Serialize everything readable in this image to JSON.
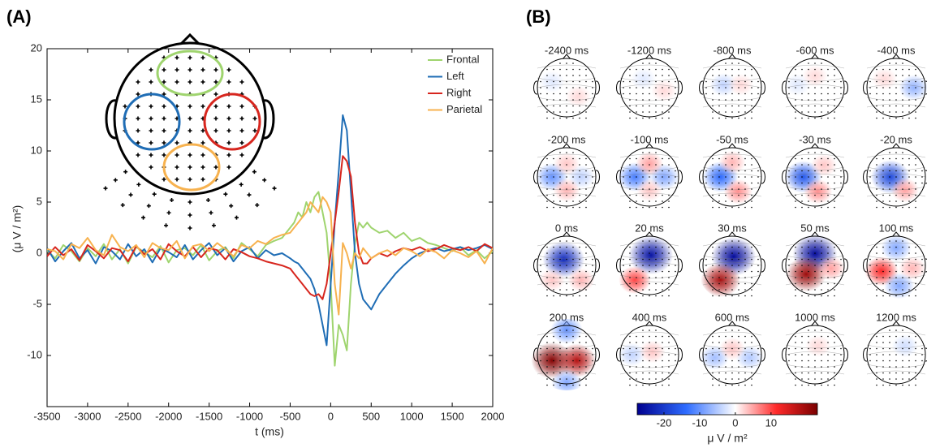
{
  "chart_data": [
    {
      "type": "line",
      "panel_label": "(A)",
      "xlabel": "t (ms)",
      "ylabel": "(μ V / m²)",
      "xlim": [
        -3500,
        2000
      ],
      "ylim": [
        -15,
        20
      ],
      "xticks": [
        -3500,
        -3000,
        -2500,
        -2000,
        -1500,
        -1000,
        -500,
        0,
        500,
        1000,
        1500,
        2000
      ],
      "yticks": [
        -10,
        -5,
        0,
        5,
        10,
        15,
        20
      ],
      "legend": "upper right",
      "x": [
        -3500,
        -3400,
        -3300,
        -3200,
        -3100,
        -3000,
        -2900,
        -2800,
        -2700,
        -2600,
        -2500,
        -2400,
        -2300,
        -2200,
        -2100,
        -2000,
        -1900,
        -1800,
        -1700,
        -1600,
        -1500,
        -1400,
        -1300,
        -1200,
        -1100,
        -1000,
        -900,
        -800,
        -700,
        -600,
        -500,
        -450,
        -400,
        -350,
        -300,
        -250,
        -200,
        -150,
        -100,
        -50,
        0,
        50,
        100,
        150,
        200,
        250,
        300,
        350,
        400,
        450,
        500,
        600,
        700,
        800,
        900,
        1000,
        1100,
        1200,
        1300,
        1400,
        1500,
        1600,
        1700,
        1800,
        1900,
        2000
      ],
      "series": [
        {
          "name": "Frontal",
          "color": "#9fd46e",
          "values": [
            0.3,
            -0.5,
            0.8,
            0.2,
            -0.8,
            0.5,
            -0.3,
            0.9,
            -0.6,
            0.4,
            -1,
            0.6,
            0.1,
            -0.4,
            0.7,
            -0.9,
            0.3,
            0.5,
            -0.2,
            0.8,
            -0.7,
            0.2,
            0.6,
            -0.5,
            1,
            0.4,
            -0.3,
            0.8,
            1.2,
            1.5,
            2.5,
            3,
            4,
            3.5,
            5,
            4,
            5.5,
            6,
            4,
            2,
            -3,
            -11,
            -7,
            -8,
            -9.5,
            -3,
            1,
            3,
            2.5,
            3,
            2.5,
            2,
            2.2,
            1.5,
            2,
            1.2,
            1.5,
            1,
            0.8,
            0.5,
            0.2,
            0.6,
            -0.2,
            0.3,
            -0.5,
            0.2
          ]
        },
        {
          "name": "Left",
          "color": "#1f6db5",
          "values": [
            0.5,
            -0.8,
            0.2,
            1,
            -0.5,
            0.3,
            -1,
            0.6,
            0.2,
            -0.6,
            0.9,
            -0.3,
            0.4,
            -0.9,
            0.5,
            0.1,
            -0.4,
            0.8,
            -0.6,
            0.3,
            1,
            -0.2,
            0.5,
            -0.8,
            0.2,
            0.6,
            -0.5,
            0.3,
            -0.2,
            0,
            -0.5,
            -0.8,
            -1,
            -1.5,
            -2,
            -2.5,
            -3.5,
            -5,
            -7,
            -9,
            -3,
            3,
            8,
            13.5,
            12,
            6,
            0,
            -3,
            -4.5,
            -5,
            -5.5,
            -4,
            -3,
            -2,
            -1.2,
            -0.5,
            0,
            0.3,
            0.5,
            0.2,
            0.4,
            0.6,
            0.3,
            0.5,
            0.8,
            0.4
          ]
        },
        {
          "name": "Right",
          "color": "#d7261e",
          "values": [
            -0.3,
            0.6,
            -0.2,
            0.4,
            -0.7,
            0.8,
            0.2,
            -0.5,
            0.5,
            0.3,
            -0.8,
            0.7,
            -0.1,
            0.4,
            -0.6,
            0.9,
            0.2,
            -0.3,
            0.6,
            -0.4,
            0.5,
            0.3,
            -0.6,
            0.4,
            0.1,
            -0.3,
            -0.5,
            -0.8,
            -1,
            -1.2,
            -1.5,
            -2,
            -2.5,
            -3,
            -3.5,
            -4,
            -4.2,
            -4,
            -4.5,
            -3,
            0,
            3,
            6,
            9.5,
            9,
            7.5,
            3,
            0,
            -1,
            -1,
            -0.5,
            0,
            -0.3,
            0.2,
            0.5,
            0.3,
            0.6,
            0.2,
            0.4,
            0.8,
            0.5,
            0.3,
            0.6,
            0.2,
            0.9,
            0.5
          ]
        },
        {
          "name": "Parietal",
          "color": "#f7b24f",
          "values": [
            0.4,
            0.2,
            -0.6,
            0.9,
            0.5,
            1.5,
            0.3,
            -0.2,
            1.8,
            0.6,
            0.2,
            0.8,
            -0.4,
            1,
            0.5,
            0.3,
            1.2,
            -0.5,
            0.7,
            0.9,
            0.2,
            1,
            0.4,
            -0.3,
            0.8,
            0.5,
            1.2,
            0.9,
            1.5,
            1.8,
            2,
            2.5,
            3,
            3.5,
            4,
            5,
            4.5,
            4,
            5.5,
            5,
            4,
            -3,
            -6,
            1,
            0,
            -1.5,
            0,
            -0.5,
            0.5,
            0,
            -0.5,
            0,
            0.3,
            -0.2,
            0.5,
            0.2,
            -0.3,
            0.4,
            0.1,
            -0.5,
            0.3,
            0,
            -0.4,
            0.2,
            -1,
            0.5
          ]
        }
      ]
    },
    {
      "type": "topomap",
      "panel_label": "(B)",
      "columns": 5,
      "maps": [
        {
          "title": "-2400 ms",
          "blobs": [
            {
              "x": -0.5,
              "y": 0.2,
              "value": -2
            },
            {
              "x": 0.4,
              "y": -0.3,
              "value": 2
            }
          ]
        },
        {
          "title": "-1200 ms",
          "blobs": [
            {
              "x": -0.2,
              "y": 0.3,
              "value": -2
            },
            {
              "x": 0.5,
              "y": -0.1,
              "value": 2
            }
          ]
        },
        {
          "title": "-800 ms",
          "blobs": [
            {
              "x": -0.3,
              "y": 0.1,
              "value": -4
            },
            {
              "x": 0.3,
              "y": 0.1,
              "value": 2
            }
          ]
        },
        {
          "title": "-600 ms",
          "blobs": [
            {
              "x": -0.6,
              "y": 0.1,
              "value": -2
            },
            {
              "x": 0,
              "y": 0.4,
              "value": 2
            }
          ]
        },
        {
          "title": "-400 ms",
          "blobs": [
            {
              "x": 0.6,
              "y": 0,
              "value": -7
            },
            {
              "x": -0.4,
              "y": 0.3,
              "value": 2
            }
          ]
        },
        {
          "title": "-200 ms",
          "blobs": [
            {
              "x": -0.5,
              "y": 0,
              "value": -10
            },
            {
              "x": 0.5,
              "y": 0,
              "value": -4
            },
            {
              "x": 0,
              "y": -0.45,
              "value": 4
            },
            {
              "x": 0,
              "y": 0.45,
              "value": 3
            }
          ]
        },
        {
          "title": "-100 ms",
          "blobs": [
            {
              "x": -0.5,
              "y": 0,
              "value": -12
            },
            {
              "x": 0.5,
              "y": 0,
              "value": -8
            },
            {
              "x": 0,
              "y": 0.45,
              "value": 5
            },
            {
              "x": 0,
              "y": -0.45,
              "value": 3
            }
          ]
        },
        {
          "title": "-50 ms",
          "blobs": [
            {
              "x": -0.4,
              "y": 0,
              "value": -14
            },
            {
              "x": 0.2,
              "y": -0.5,
              "value": 6
            },
            {
              "x": 0,
              "y": 0.5,
              "value": 4
            }
          ]
        },
        {
          "title": "-30 ms",
          "blobs": [
            {
              "x": -0.4,
              "y": 0,
              "value": -16
            },
            {
              "x": 0.1,
              "y": -0.5,
              "value": 6
            },
            {
              "x": 0.3,
              "y": 0.4,
              "value": 3
            }
          ]
        },
        {
          "title": "-20 ms",
          "blobs": [
            {
              "x": -0.2,
              "y": 0,
              "value": -18
            },
            {
              "x": 0.3,
              "y": -0.45,
              "value": 5
            }
          ]
        },
        {
          "title": "0 ms",
          "blobs": [
            {
              "x": -0.1,
              "y": 0.2,
              "value": -22
            },
            {
              "x": 0.5,
              "y": -0.5,
              "value": 4
            },
            {
              "x": -0.5,
              "y": -0.5,
              "value": 3
            }
          ]
        },
        {
          "title": "20 ms",
          "blobs": [
            {
              "x": 0.05,
              "y": 0.35,
              "value": -25
            },
            {
              "x": -0.5,
              "y": -0.5,
              "value": 10
            }
          ]
        },
        {
          "title": "30 ms",
          "blobs": [
            {
              "x": 0.05,
              "y": 0.3,
              "value": -26
            },
            {
              "x": -0.4,
              "y": -0.5,
              "value": 19
            }
          ]
        },
        {
          "title": "50 ms",
          "blobs": [
            {
              "x": 0,
              "y": 0.4,
              "value": -26
            },
            {
              "x": -0.3,
              "y": -0.3,
              "value": 20
            },
            {
              "x": 0.55,
              "y": -0.1,
              "value": 5
            }
          ]
        },
        {
          "title": "100 ms",
          "blobs": [
            {
              "x": 0,
              "y": 0.6,
              "value": -8
            },
            {
              "x": -0.5,
              "y": -0.2,
              "value": 12
            },
            {
              "x": 0.55,
              "y": -0.1,
              "value": 4
            },
            {
              "x": 0.1,
              "y": -0.7,
              "value": -8
            }
          ]
        },
        {
          "title": "200 ms",
          "blobs": [
            {
              "x": -0.5,
              "y": -0.2,
              "value": 22
            },
            {
              "x": 0.35,
              "y": -0.2,
              "value": 18
            },
            {
              "x": 0,
              "y": 0.85,
              "value": -10
            },
            {
              "x": 0,
              "y": -0.95,
              "value": -8
            }
          ]
        },
        {
          "title": "400 ms",
          "blobs": [
            {
              "x": -0.6,
              "y": 0,
              "value": -4
            },
            {
              "x": 0.1,
              "y": 0.1,
              "value": 3
            }
          ]
        },
        {
          "title": "600 ms",
          "blobs": [
            {
              "x": -0.6,
              "y": -0.1,
              "value": -6
            },
            {
              "x": 0.6,
              "y": -0.1,
              "value": -5
            },
            {
              "x": 0,
              "y": 0.2,
              "value": 3
            }
          ]
        },
        {
          "title": "1000 ms",
          "blobs": [
            {
              "x": 0.1,
              "y": 0.3,
              "value": 2
            }
          ]
        },
        {
          "title": "1200 ms",
          "blobs": [
            {
              "x": 0.3,
              "y": 0.3,
              "value": -3
            }
          ]
        }
      ],
      "colorbar": {
        "label": "μ V / m²",
        "lim": [
          -27.5,
          23
        ],
        "ticks": [
          -20,
          -10,
          0,
          10
        ],
        "colors": [
          "#00008f",
          "#2e6cff",
          "#ffffff",
          "#ff2a2a",
          "#7a0000"
        ]
      }
    }
  ]
}
